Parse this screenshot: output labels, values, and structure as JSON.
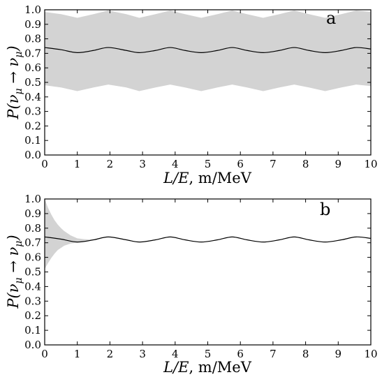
{
  "chart_data": [
    {
      "type": "line",
      "panel_label": "a",
      "xlabel": "L/E, m/MeV",
      "ylabel": "P(ν_μ → ν_μ)",
      "xlabel_parts": {
        "var": "L/E",
        "unit": ", m/MeV"
      },
      "ylabel_parts": {
        "p": "P(",
        "nu1": "ν",
        "sub1": "μ",
        "arrow": " → ",
        "nu2": "ν",
        "sub2": "μ",
        "close": ")"
      },
      "xlim": [
        0,
        10
      ],
      "ylim": [
        0,
        1
      ],
      "xticks": [
        "0",
        "1",
        "2",
        "3",
        "4",
        "5",
        "6",
        "7",
        "8",
        "9",
        "10"
      ],
      "yticks": [
        "0.0",
        "0.1",
        "0.2",
        "0.3",
        "0.4",
        "0.5",
        "0.6",
        "0.7",
        "0.8",
        "0.9",
        "1.0"
      ],
      "grid": false,
      "colors": {
        "band": "#d3d3d3",
        "line": "#000000"
      },
      "series": [
        {
          "role": "mean",
          "x": [
            0,
            0.5,
            1.0,
            1.5,
            1.95,
            2.5,
            2.9,
            3.4,
            3.85,
            4.3,
            4.8,
            5.3,
            5.75,
            6.2,
            6.7,
            7.2,
            7.65,
            8.1,
            8.6,
            9.1,
            9.55,
            10
          ],
          "y": [
            0.74,
            0.725,
            0.705,
            0.72,
            0.74,
            0.72,
            0.705,
            0.72,
            0.74,
            0.72,
            0.705,
            0.72,
            0.74,
            0.72,
            0.705,
            0.72,
            0.74,
            0.72,
            0.705,
            0.72,
            0.74,
            0.73
          ]
        },
        {
          "role": "band-upper",
          "x": [
            0,
            0.5,
            1.0,
            1.5,
            1.95,
            2.5,
            2.9,
            3.4,
            3.85,
            4.3,
            4.8,
            5.3,
            5.75,
            6.2,
            6.7,
            7.2,
            7.65,
            8.1,
            8.6,
            9.1,
            9.55,
            10
          ],
          "y": [
            0.985,
            0.97,
            0.945,
            0.97,
            0.995,
            0.97,
            0.945,
            0.97,
            0.995,
            0.97,
            0.945,
            0.97,
            0.995,
            0.97,
            0.945,
            0.97,
            0.995,
            0.97,
            0.945,
            0.97,
            0.995,
            0.985
          ]
        },
        {
          "role": "band-lower",
          "x": [
            0,
            0.5,
            1.0,
            1.5,
            1.95,
            2.5,
            2.9,
            3.4,
            3.85,
            4.3,
            4.8,
            5.3,
            5.75,
            6.2,
            6.7,
            7.2,
            7.65,
            8.1,
            8.6,
            9.1,
            9.55,
            10
          ],
          "y": [
            0.48,
            0.465,
            0.44,
            0.465,
            0.485,
            0.465,
            0.44,
            0.465,
            0.485,
            0.465,
            0.44,
            0.465,
            0.485,
            0.465,
            0.44,
            0.465,
            0.485,
            0.465,
            0.44,
            0.465,
            0.485,
            0.475
          ]
        }
      ]
    },
    {
      "type": "line",
      "panel_label": "b",
      "xlabel": "L/E, m/MeV",
      "ylabel": "P(ν_μ → ν_μ)",
      "xlabel_parts": {
        "var": "L/E",
        "unit": ", m/MeV"
      },
      "ylabel_parts": {
        "p": "P(",
        "nu1": "ν",
        "sub1": "μ",
        "arrow": " → ",
        "nu2": "ν",
        "sub2": "μ",
        "close": ")"
      },
      "xlim": [
        0,
        10
      ],
      "ylim": [
        0,
        1
      ],
      "xticks": [
        "0",
        "1",
        "2",
        "3",
        "4",
        "5",
        "6",
        "7",
        "8",
        "9",
        "10"
      ],
      "yticks": [
        "0.0",
        "0.1",
        "0.2",
        "0.3",
        "0.4",
        "0.5",
        "0.6",
        "0.7",
        "0.8",
        "0.9",
        "1.0"
      ],
      "grid": false,
      "colors": {
        "band": "#d3d3d3",
        "line": "#000000"
      },
      "series": [
        {
          "role": "mean",
          "x": [
            0,
            0.5,
            1.0,
            1.5,
            1.95,
            2.5,
            2.9,
            3.4,
            3.85,
            4.3,
            4.8,
            5.3,
            5.75,
            6.2,
            6.7,
            7.2,
            7.65,
            8.1,
            8.6,
            9.1,
            9.55,
            10
          ],
          "y": [
            0.74,
            0.725,
            0.705,
            0.72,
            0.74,
            0.72,
            0.705,
            0.72,
            0.74,
            0.72,
            0.705,
            0.72,
            0.74,
            0.72,
            0.705,
            0.72,
            0.74,
            0.72,
            0.705,
            0.72,
            0.74,
            0.73
          ]
        },
        {
          "role": "band-upper",
          "x": [
            0,
            0.1,
            0.2,
            0.3,
            0.4,
            0.5,
            0.6,
            0.8,
            1.0,
            1.2,
            1.4,
            1.5
          ],
          "y": [
            1.0,
            0.94,
            0.895,
            0.855,
            0.825,
            0.8,
            0.78,
            0.75,
            0.73,
            0.725,
            0.722,
            0.72
          ]
        },
        {
          "role": "band-lower",
          "x": [
            0,
            0.1,
            0.2,
            0.3,
            0.4,
            0.5,
            0.6,
            0.8,
            1.0,
            1.2,
            1.4,
            1.5
          ],
          "y": [
            0.52,
            0.56,
            0.595,
            0.625,
            0.65,
            0.665,
            0.68,
            0.695,
            0.7,
            0.712,
            0.718,
            0.72
          ]
        }
      ]
    }
  ]
}
